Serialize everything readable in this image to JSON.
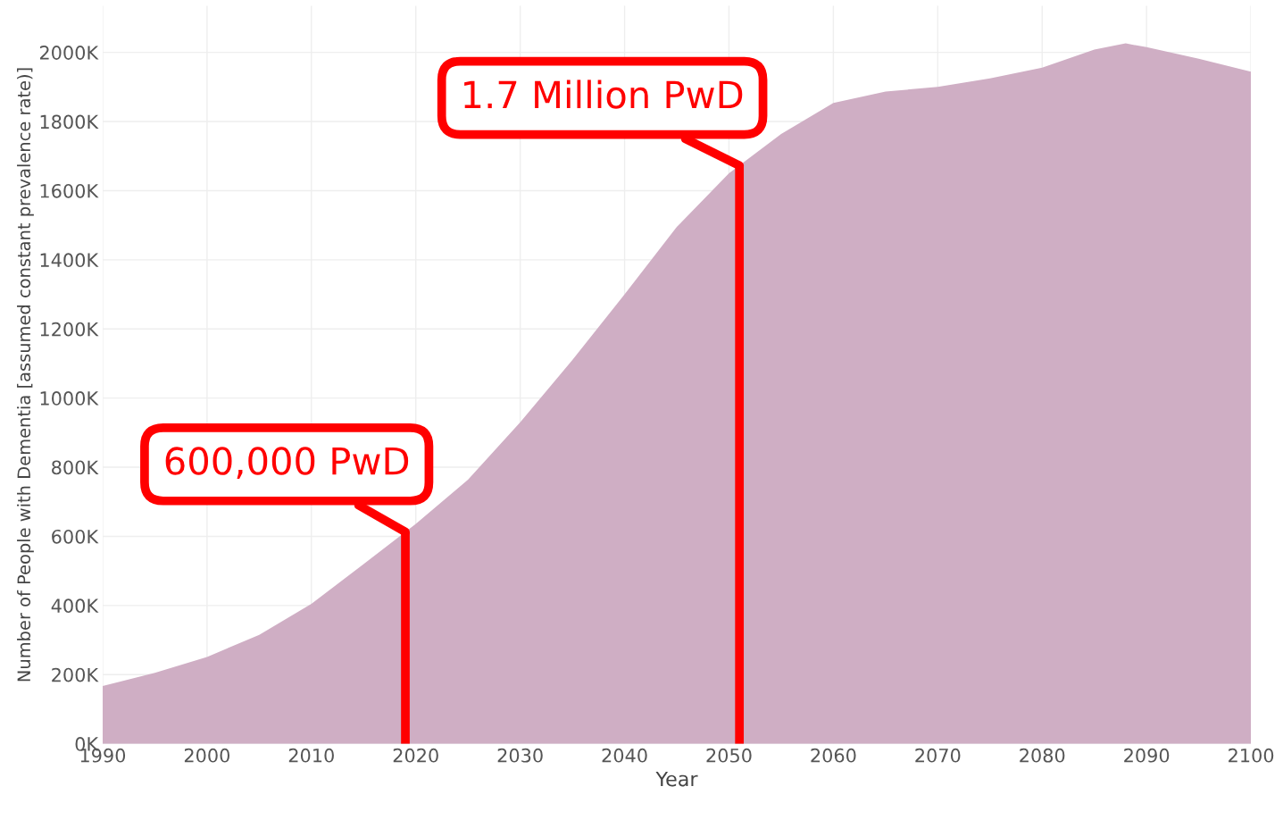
{
  "chart_data": {
    "type": "area",
    "xlabel": "Year",
    "ylabel": "Number of People with Dementia [assumed constant prevalence rate)]",
    "x": [
      1990,
      1995,
      2000,
      2005,
      2010,
      2015,
      2020,
      2025,
      2030,
      2035,
      2040,
      2045,
      2050,
      2055,
      2060,
      2065,
      2070,
      2075,
      2080,
      2085,
      2088,
      2090,
      2095,
      2100
    ],
    "series": [
      {
        "color": "#cfaec4",
        "values": [
          167000,
          205000,
          251000,
          315000,
          405000,
          520000,
          636000,
          764000,
          930000,
          1110000,
          1300000,
          1495000,
          1650000,
          1764000,
          1854000,
          1887000,
          1900000,
          1925000,
          1956000,
          2008000,
          2026000,
          2015000,
          1982000,
          1944000
        ]
      }
    ],
    "xlim": [
      1990,
      2100
    ],
    "xticks": [
      1990,
      2000,
      2010,
      2020,
      2030,
      2040,
      2050,
      2060,
      2070,
      2080,
      2090,
      2100
    ],
    "ylim": [
      0,
      2135000
    ],
    "yticks": [
      {
        "value": 0,
        "label": "0K"
      },
      {
        "value": 200000,
        "label": "200K"
      },
      {
        "value": 400000,
        "label": "400K"
      },
      {
        "value": 600000,
        "label": "600K"
      },
      {
        "value": 800000,
        "label": "800K"
      },
      {
        "value": 1000000,
        "label": "1000K"
      },
      {
        "value": 1200000,
        "label": "1200K"
      },
      {
        "value": 1400000,
        "label": "1400K"
      },
      {
        "value": 1600000,
        "label": "1600K"
      },
      {
        "value": 1800000,
        "label": "1800K"
      },
      {
        "value": 2000000,
        "label": "2000K"
      }
    ],
    "grid": true,
    "ref_lines": [
      {
        "axis": "x",
        "value": 2019,
        "label": "600,000 PwD",
        "color": "#ff0000"
      },
      {
        "axis": "x",
        "value": 2051,
        "label": "1.7 Million PwD",
        "color": "#ff0000"
      }
    ]
  }
}
